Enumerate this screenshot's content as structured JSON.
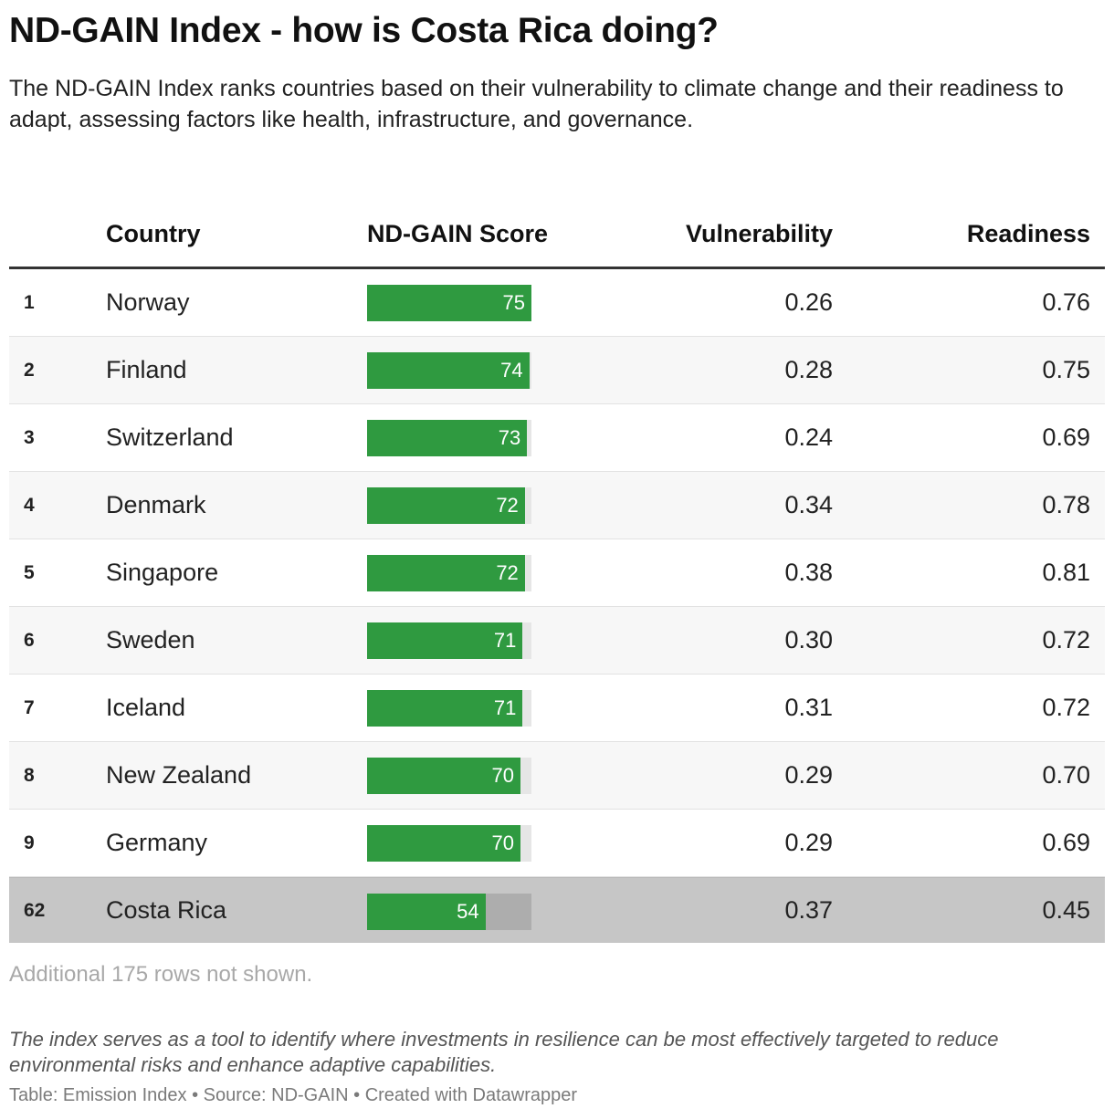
{
  "header": {
    "title": "ND-GAIN Index - how is Costa Rica doing?",
    "subtitle": "The ND-GAIN Index ranks countries based on their vulnerability to climate change and their readiness to adapt, assessing factors like health, infrastructure, and governance."
  },
  "colors": {
    "bar": "#2f9a40",
    "bar_track": "#e6e6e6",
    "highlight_row": "#c6c6c6"
  },
  "chart_data": {
    "type": "table",
    "columns": {
      "rank": "",
      "country": "Country",
      "score": "ND-GAIN Score",
      "vulnerability": "Vulnerability",
      "readiness": "Readiness"
    },
    "score_max": 75,
    "rows": [
      {
        "rank": "1",
        "country": "Norway",
        "score": 75,
        "vulnerability": "0.26",
        "readiness": "0.76"
      },
      {
        "rank": "2",
        "country": "Finland",
        "score": 74,
        "vulnerability": "0.28",
        "readiness": "0.75"
      },
      {
        "rank": "3",
        "country": "Switzerland",
        "score": 73,
        "vulnerability": "0.24",
        "readiness": "0.69"
      },
      {
        "rank": "4",
        "country": "Denmark",
        "score": 72,
        "vulnerability": "0.34",
        "readiness": "0.78"
      },
      {
        "rank": "5",
        "country": "Singapore",
        "score": 72,
        "vulnerability": "0.38",
        "readiness": "0.81"
      },
      {
        "rank": "6",
        "country": "Sweden",
        "score": 71,
        "vulnerability": "0.30",
        "readiness": "0.72"
      },
      {
        "rank": "7",
        "country": "Iceland",
        "score": 71,
        "vulnerability": "0.31",
        "readiness": "0.72"
      },
      {
        "rank": "8",
        "country": "New Zealand",
        "score": 70,
        "vulnerability": "0.29",
        "readiness": "0.70"
      },
      {
        "rank": "9",
        "country": "Germany",
        "score": 70,
        "vulnerability": "0.29",
        "readiness": "0.69"
      },
      {
        "rank": "62",
        "country": "Costa Rica",
        "score": 54,
        "vulnerability": "0.37",
        "readiness": "0.45",
        "highlight": true
      }
    ]
  },
  "footer": {
    "notes": "Additional 175 rows not shown.",
    "caption": "The index serves as a tool to identify where investments in resilience can be most effectively targeted to reduce environmental risks and enhance adaptive capabilities.",
    "source": "Table: Emission Index • Source: ND-GAIN • Created with Datawrapper"
  }
}
